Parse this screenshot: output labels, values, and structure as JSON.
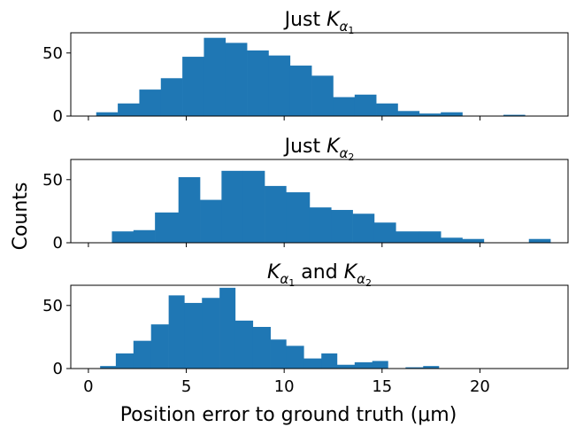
{
  "chart_data": [
    {
      "type": "bar",
      "title_text": "Just ",
      "title_math": [
        {
          "base": "K",
          "sub": "α",
          "subsub": "1"
        }
      ],
      "xlim": [
        -0.9,
        24.5
      ],
      "ylim": [
        0,
        66
      ],
      "yticks": [
        0,
        50
      ],
      "xticks": [
        0,
        5,
        10,
        15,
        20
      ],
      "show_xtick_labels": false,
      "color": "#1f77b4",
      "bins": [
        {
          "x0": 0.4,
          "x1": 1.5,
          "count": 3
        },
        {
          "x0": 1.5,
          "x1": 2.6,
          "count": 10
        },
        {
          "x0": 2.6,
          "x1": 3.7,
          "count": 21
        },
        {
          "x0": 3.7,
          "x1": 4.8,
          "count": 30
        },
        {
          "x0": 4.8,
          "x1": 5.9,
          "count": 47
        },
        {
          "x0": 5.9,
          "x1": 7.0,
          "count": 62
        },
        {
          "x0": 7.0,
          "x1": 8.1,
          "count": 58
        },
        {
          "x0": 8.1,
          "x1": 9.2,
          "count": 52
        },
        {
          "x0": 9.2,
          "x1": 10.3,
          "count": 48
        },
        {
          "x0": 10.3,
          "x1": 11.4,
          "count": 40
        },
        {
          "x0": 11.4,
          "x1": 12.5,
          "count": 32
        },
        {
          "x0": 12.5,
          "x1": 13.6,
          "count": 15
        },
        {
          "x0": 13.6,
          "x1": 14.7,
          "count": 17
        },
        {
          "x0": 14.7,
          "x1": 15.8,
          "count": 10
        },
        {
          "x0": 15.8,
          "x1": 16.9,
          "count": 4
        },
        {
          "x0": 16.9,
          "x1": 18.0,
          "count": 2
        },
        {
          "x0": 18.0,
          "x1": 19.1,
          "count": 3
        },
        {
          "x0": 21.2,
          "x1": 22.3,
          "count": 1
        }
      ]
    },
    {
      "type": "bar",
      "title_text": "Just ",
      "title_math": [
        {
          "base": "K",
          "sub": "α",
          "subsub": "2"
        }
      ],
      "xlim": [
        -0.9,
        24.5
      ],
      "ylim": [
        0,
        66
      ],
      "yticks": [
        0,
        50
      ],
      "xticks": [
        0,
        5,
        10,
        15,
        20
      ],
      "show_xtick_labels": false,
      "color": "#1f77b4",
      "bins": [
        {
          "x0": 1.2,
          "x1": 2.3,
          "count": 9
        },
        {
          "x0": 2.3,
          "x1": 3.4,
          "count": 10
        },
        {
          "x0": 3.4,
          "x1": 4.6,
          "count": 24
        },
        {
          "x0": 4.6,
          "x1": 5.7,
          "count": 52
        },
        {
          "x0": 5.7,
          "x1": 6.8,
          "count": 34
        },
        {
          "x0": 6.8,
          "x1": 7.9,
          "count": 57
        },
        {
          "x0": 7.9,
          "x1": 9.0,
          "count": 57
        },
        {
          "x0": 9.0,
          "x1": 10.1,
          "count": 45
        },
        {
          "x0": 10.1,
          "x1": 11.3,
          "count": 40
        },
        {
          "x0": 11.3,
          "x1": 12.4,
          "count": 28
        },
        {
          "x0": 12.4,
          "x1": 13.5,
          "count": 26
        },
        {
          "x0": 13.5,
          "x1": 14.6,
          "count": 23
        },
        {
          "x0": 14.6,
          "x1": 15.7,
          "count": 16
        },
        {
          "x0": 15.7,
          "x1": 16.9,
          "count": 9
        },
        {
          "x0": 16.9,
          "x1": 18.0,
          "count": 9
        },
        {
          "x0": 18.0,
          "x1": 19.1,
          "count": 4
        },
        {
          "x0": 19.1,
          "x1": 20.2,
          "count": 3
        },
        {
          "x0": 22.5,
          "x1": 23.6,
          "count": 3
        }
      ]
    },
    {
      "type": "bar",
      "title_text": " and ",
      "title_math": [
        {
          "base": "K",
          "sub": "α",
          "subsub": "1"
        },
        {
          "base": "K",
          "sub": "α",
          "subsub": "2"
        }
      ],
      "xlim": [
        -0.9,
        24.5
      ],
      "ylim": [
        0,
        66
      ],
      "yticks": [
        0,
        50
      ],
      "xticks": [
        0,
        5,
        10,
        15,
        20
      ],
      "show_xtick_labels": true,
      "color": "#1f77b4",
      "bins": [
        {
          "x0": 0.6,
          "x1": 1.4,
          "count": 2
        },
        {
          "x0": 1.4,
          "x1": 2.3,
          "count": 12
        },
        {
          "x0": 2.3,
          "x1": 3.2,
          "count": 22
        },
        {
          "x0": 3.2,
          "x1": 4.1,
          "count": 35
        },
        {
          "x0": 4.1,
          "x1": 4.9,
          "count": 58
        },
        {
          "x0": 4.9,
          "x1": 5.8,
          "count": 52
        },
        {
          "x0": 5.8,
          "x1": 6.7,
          "count": 56
        },
        {
          "x0": 6.7,
          "x1": 7.5,
          "count": 64
        },
        {
          "x0": 7.5,
          "x1": 8.4,
          "count": 38
        },
        {
          "x0": 8.4,
          "x1": 9.3,
          "count": 33
        },
        {
          "x0": 9.3,
          "x1": 10.1,
          "count": 23
        },
        {
          "x0": 10.1,
          "x1": 11.0,
          "count": 18
        },
        {
          "x0": 11.0,
          "x1": 11.9,
          "count": 8
        },
        {
          "x0": 11.9,
          "x1": 12.7,
          "count": 12
        },
        {
          "x0": 12.7,
          "x1": 13.6,
          "count": 3
        },
        {
          "x0": 13.6,
          "x1": 14.5,
          "count": 5
        },
        {
          "x0": 14.5,
          "x1": 15.3,
          "count": 6
        },
        {
          "x0": 16.2,
          "x1": 17.1,
          "count": 1
        },
        {
          "x0": 17.1,
          "x1": 17.9,
          "count": 2
        }
      ]
    }
  ],
  "shared": {
    "ylabel": "Counts",
    "xlabel": "Position error to ground truth (μm)"
  }
}
